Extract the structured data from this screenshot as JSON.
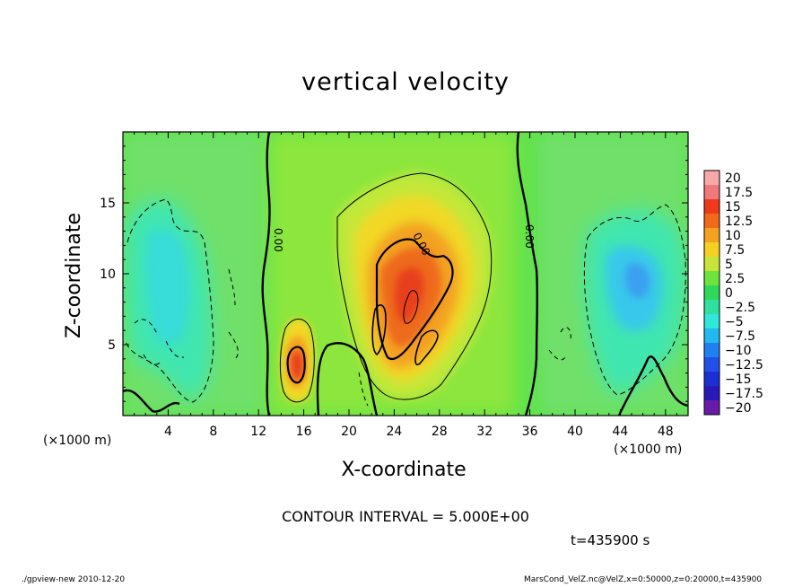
{
  "chart_data": {
    "type": "heatmap",
    "title": "vertical velocity",
    "xlabel": "X-coordinate",
    "ylabel": "Z-coordinate",
    "x_unit": "(×1000 m)",
    "z_unit": "(×1000 m)",
    "xlim": [
      0,
      50
    ],
    "ylim": [
      0,
      20
    ],
    "xticks": [
      4,
      8,
      12,
      16,
      20,
      24,
      28,
      32,
      36,
      40,
      44,
      48
    ],
    "yticks": [
      5,
      10,
      15
    ],
    "colorbar": {
      "labels": [
        "20",
        "17.5",
        "15",
        "12.5",
        "10",
        "7.5",
        "5",
        "2.5",
        "0",
        "−2.5",
        "−5",
        "−7.5",
        "−10",
        "−12.5",
        "−15",
        "−17.5",
        "−20"
      ],
      "colors": [
        "#f9a8a8",
        "#f07a7a",
        "#ee3a1a",
        "#f06a1a",
        "#f4a020",
        "#f4d020",
        "#c8e43a",
        "#6ee33c",
        "#2fd85a",
        "#2fe0a0",
        "#2ee8d8",
        "#22b8f0",
        "#2080f0",
        "#2050e8",
        "#1a30d0",
        "#2a18b8",
        "#6a1aa8"
      ]
    },
    "contour_labels": [
      "0.00",
      "0.00",
      "0.00"
    ],
    "contour_interval": "CONTOUR INTERVAL = 5.000E+00",
    "time": "t=435900 s"
  },
  "footer": {
    "left": "./gpview-new  2010-12-20",
    "right": "MarsCond_VelZ.nc@VelZ,x=0:50000,z=0:20000,t=435900"
  }
}
